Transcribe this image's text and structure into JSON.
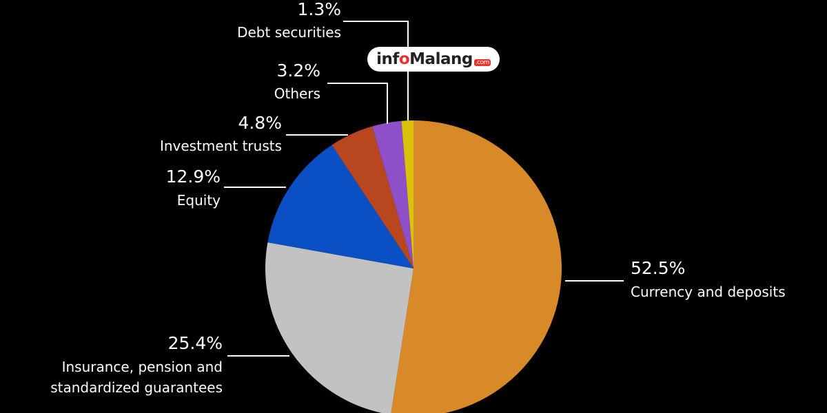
{
  "chart_data": {
    "type": "pie",
    "title": "",
    "slices": [
      {
        "label": "Currency and deposits",
        "percent_label": "52.5%",
        "value": 52.5,
        "color": "#d98a28"
      },
      {
        "label": "Insurance, pension and standardized guarantees",
        "label_lines": [
          "Insurance, pension and",
          "standardized guarantees"
        ],
        "percent_label": "25.4%",
        "value": 25.4,
        "color": "#c2c2c2"
      },
      {
        "label": "Equity",
        "percent_label": "12.9%",
        "value": 12.9,
        "color": "#0a4fc4"
      },
      {
        "label": "Investment trusts",
        "percent_label": "4.8%",
        "value": 4.8,
        "color": "#b8461f"
      },
      {
        "label": "Others",
        "percent_label": "3.2%",
        "value": 3.2,
        "color": "#8e4fc8"
      },
      {
        "label": "Debt securities",
        "percent_label": "1.3%",
        "value": 1.3,
        "color": "#d8c20a"
      }
    ]
  },
  "watermark": {
    "text_pre": "inf",
    "text_o": "o",
    "text_post": "Malang",
    "text_suffix": ".com"
  }
}
